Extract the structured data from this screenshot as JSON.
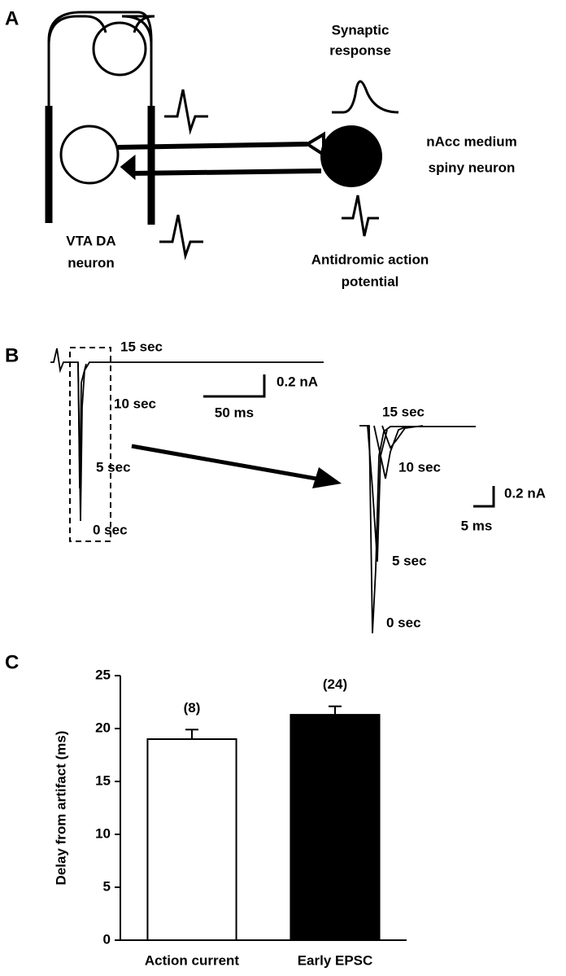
{
  "panel_a": {
    "label": "A",
    "synaptic": [
      "Synaptic",
      "response"
    ],
    "nacc": [
      "nAcc medium",
      "spiny neuron"
    ],
    "vta": [
      "VTA DA",
      "neuron"
    ],
    "antidromic": [
      "Antidromic action",
      "potential"
    ]
  },
  "panel_b": {
    "label": "B",
    "left_labels": [
      "15 sec",
      "10 sec",
      "5 sec",
      "0 sec"
    ],
    "left_scale": {
      "y": "0.2 nA",
      "x": "50 ms"
    },
    "right_labels": [
      "15 sec",
      "10 sec",
      "5 sec",
      "0 sec"
    ],
    "right_scale": {
      "y": "0.2 nA",
      "x": "5 ms"
    }
  },
  "panel_c": {
    "label": "C"
  },
  "chart_data": {
    "type": "bar",
    "ylabel": "Delay from artifact (ms)",
    "categories": [
      "Action current",
      "Early EPSC"
    ],
    "values": [
      19.0,
      21.3
    ],
    "errors": [
      0.9,
      0.8
    ],
    "annotations": [
      "(8)",
      "(24)"
    ],
    "colors": [
      "#ffffff",
      "#000000"
    ],
    "ylim": [
      0,
      25
    ],
    "yticks": [
      0,
      5,
      10,
      15,
      20,
      25
    ]
  }
}
